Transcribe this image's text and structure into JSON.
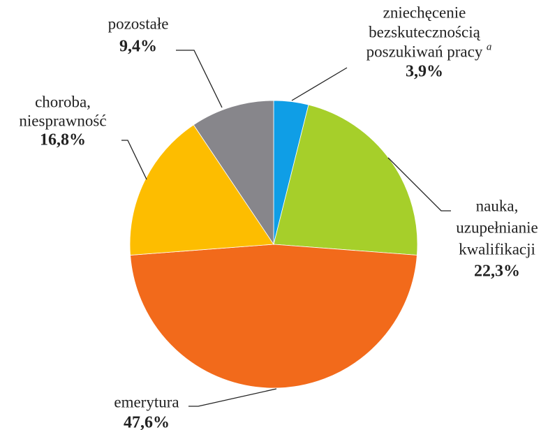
{
  "chart_data": {
    "type": "pie",
    "categories": [
      [
        "zniechęcenie",
        "bezskutecznością",
        "poszukiwań pracy"
      ],
      [
        "nauka,",
        "uzupełnianie",
        "kwalifikacji"
      ],
      [
        "emerytura"
      ],
      [
        "choroba,",
        "niesprawność"
      ],
      [
        "pozostałe"
      ]
    ],
    "label_notes": [
      "a",
      null,
      null,
      null,
      null
    ],
    "values": [
      3.9,
      22.3,
      47.6,
      16.8,
      9.4
    ],
    "value_labels": [
      "3,9%",
      "22,3%",
      "47,6%",
      "16,8%",
      "9,4%"
    ],
    "colors": [
      "#0f9ee6",
      "#a6cf2a",
      "#f26a1b",
      "#fdbd00",
      "#87868b"
    ],
    "start_angle": 0,
    "direction": "clockwise"
  }
}
